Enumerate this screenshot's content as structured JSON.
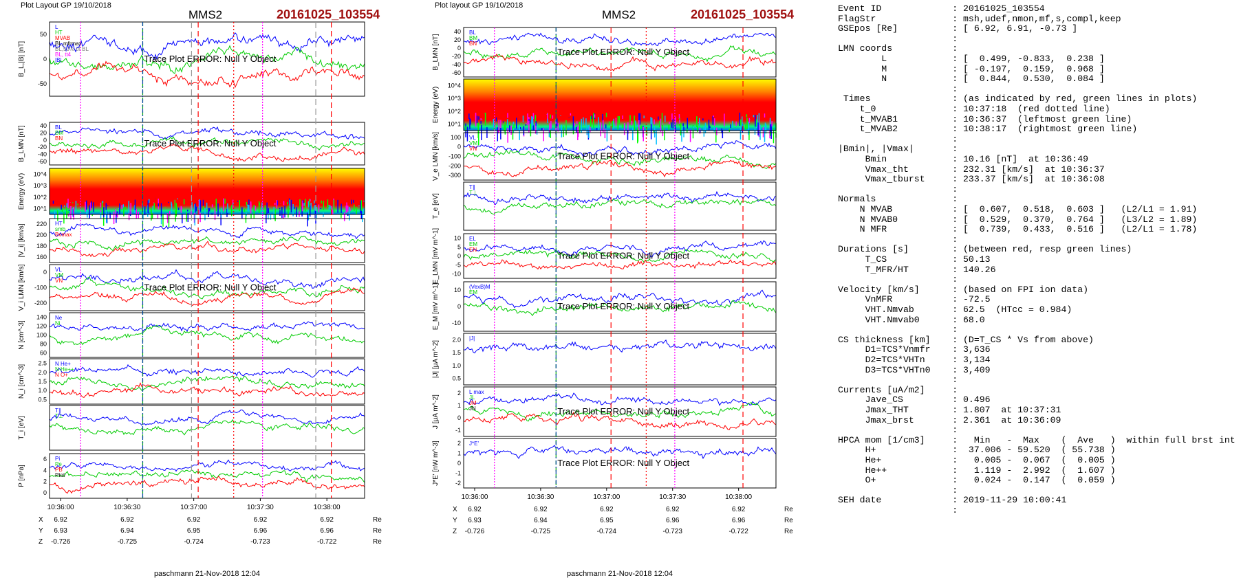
{
  "left_figure": {
    "layout_label": "Plot Layout GP 19/10/2018",
    "spacecraft": "MMS2",
    "event_title": "20161025_103554",
    "footer": "paschmann 21-Nov-2018 12:04",
    "time_ticks": [
      "10:36:00",
      "10:36:30",
      "10:37:00",
      "10:37:30",
      "10:38:00"
    ],
    "gse": {
      "X": {
        "label": "X",
        "values": [
          "6.92",
          "6.92",
          "6.92",
          "6.92",
          "6.92"
        ],
        "unit": "Re"
      },
      "Y": {
        "label": "Y",
        "values": [
          "6.93",
          "6.94",
          "6.95",
          "6.96",
          "6.96"
        ],
        "unit": "Re"
      },
      "Z": {
        "label": "Z",
        "values": [
          "-0.726",
          "-0.725",
          "-0.724",
          "-0.723",
          "-0.722"
        ],
        "unit": "Re"
      }
    },
    "panels": [
      {
        "id": "BL",
        "ylabel": "B_L,|B| [nT]",
        "ticks": [
          "50",
          "0",
          "-50"
        ],
        "legend": [
          "L",
          "HT",
          "MVAB",
          "BL,mfrmax",
          "BL,50% of BL",
          "BL, tt4",
          "|B|"
        ],
        "error": "Trace Plot ERROR: Null Y Object"
      },
      {
        "id": "BLMN",
        "ylabel": "B_LMN [nT]",
        "ticks": [
          "40",
          "20",
          "0",
          "-20",
          "-40",
          "-60"
        ],
        "legend": [
          "BL",
          "BM",
          "BN"
        ],
        "error": "Trace Plot ERROR: Null Y Object"
      },
      {
        "id": "ESPEC",
        "ylabel": "Energy (eV)",
        "ticks": [
          "10^4",
          "10^3",
          "10^2",
          "10^1"
        ]
      },
      {
        "id": "VI",
        "ylabel": "|V_i| [km/s]",
        "ticks": [
          "220",
          "200",
          "180",
          "160"
        ],
        "legend": [
          "HT",
          "smb",
          "Bvmax"
        ]
      },
      {
        "id": "VILMN",
        "ylabel": "V_i LMN [km/s]",
        "ticks": [
          "0",
          "-100",
          "-200"
        ],
        "legend": [
          "VL",
          "VM",
          "VN"
        ],
        "error": "Trace Plot ERROR: Null Y Object"
      },
      {
        "id": "N",
        "ylabel": "N [cm^-3]",
        "ticks": [
          "140",
          "120",
          "100",
          "80",
          "60"
        ],
        "legend": [
          "Ne",
          "Ni"
        ]
      },
      {
        "id": "NI",
        "ylabel": "N_i [cm^-3]",
        "ticks": [
          "2.5",
          "2.0",
          "1.5",
          "1.0",
          "0.5"
        ],
        "legend": [
          "N He+",
          "N He++",
          "N O+"
        ]
      },
      {
        "id": "TI",
        "ylabel": "T_i [eV]",
        "ticks": [],
        "legend": [
          "T∥",
          "T⊥"
        ]
      },
      {
        "id": "P",
        "ylabel": "P [nPa]",
        "ticks": [
          "6",
          "4",
          "2",
          "0"
        ],
        "legend": [
          "Pi",
          "Pe",
          "PB",
          "Ptot"
        ]
      }
    ]
  },
  "middle_figure": {
    "layout_label": "Plot layout GP 19/10/2018",
    "spacecraft": "MMS2",
    "event_title": "20161025_103554",
    "footer": "paschmann 21-Nov-2018 12:04",
    "time_ticks": [
      "10:36:00",
      "10:36:30",
      "10:37:00",
      "10:37:30",
      "10:38:00"
    ],
    "gse": {
      "X": {
        "label": "X",
        "values": [
          "6.92",
          "6.92",
          "6.92",
          "6.92",
          "6.92"
        ],
        "unit": "Re"
      },
      "Y": {
        "label": "Y",
        "values": [
          "6.93",
          "6.94",
          "6.95",
          "6.96",
          "6.96"
        ],
        "unit": "Re"
      },
      "Z": {
        "label": "Z",
        "values": [
          "-0.726",
          "-0.725",
          "-0.724",
          "-0.723",
          "-0.722"
        ],
        "unit": "Re"
      }
    },
    "panels": [
      {
        "id": "BLMN",
        "ylabel": "B_LMN [nT]",
        "ticks": [
          "40",
          "20",
          "0",
          "-20",
          "-40",
          "-60"
        ],
        "legend": [
          "BL",
          "BM",
          "BN"
        ],
        "error": "Trace Plot ERROR: Null Y Object"
      },
      {
        "id": "ESPEC",
        "ylabel": "Energy (eV)",
        "ticks": [
          "10^4",
          "10^3",
          "10^2",
          "10^1"
        ]
      },
      {
        "id": "VE",
        "ylabel": "V_e LMN [km/s]",
        "ticks": [
          "100",
          "0",
          "-100",
          "-200",
          "-300"
        ],
        "legend": [
          "VL",
          "VM",
          "VN"
        ],
        "error": "Trace Plot ERROR: Null Y Object"
      },
      {
        "id": "TE",
        "ylabel": "T_e [eV]",
        "ticks": [],
        "legend": [
          "T∥",
          "T⊥"
        ]
      },
      {
        "id": "ELMN",
        "ylabel": "E_LMN [mV m^-1]",
        "ticks": [
          "10",
          "5",
          "0",
          "-5",
          "-10"
        ],
        "legend": [
          "EL",
          "EM",
          "EN"
        ],
        "error": "Trace Plot ERROR: Null Y Object"
      },
      {
        "id": "EM",
        "ylabel": "E_M [mV m^-1]",
        "ticks": [
          "10",
          "0",
          "-10"
        ],
        "legend": [
          "(VexB)M",
          "EM"
        ],
        "error": "Trace Plot ERROR: Null Y Object"
      },
      {
        "id": "J",
        "ylabel": "|J| [μA m^-2]",
        "ticks": [
          "2.0",
          "1.5",
          "1.0",
          "0.5"
        ],
        "legend": [
          "|J|"
        ]
      },
      {
        "id": "JLMN",
        "ylabel": "J [μA m^-2]",
        "ticks": [
          "2",
          "1",
          "0",
          "-1"
        ],
        "legend": [
          "L max",
          "JL",
          "JM",
          "JN"
        ],
        "error": "Trace Plot ERROR: Null Y Object"
      },
      {
        "id": "JE",
        "ylabel": "J*E' [nW m^-3]",
        "ticks": [
          "2",
          "1",
          "0",
          "-1",
          "-2"
        ],
        "legend": [
          "J*E'"
        ],
        "error": "Trace Plot ERROR: Null Y Object"
      }
    ]
  },
  "chart_data": {
    "type": "line",
    "x_range": [
      "10:35:55",
      "10:38:17"
    ],
    "event_lines": {
      "red_dashed": [
        "10:37:02",
        "10:38:02"
      ],
      "red_dotted": [
        "10:37:18"
      ],
      "green_dashed": [
        "10:36:37"
      ],
      "blue_dashdot": [
        "10:36:37"
      ],
      "magenta_dotted": [
        "10:36:09",
        "10:37:31"
      ],
      "gray_dashed": [
        "10:36:59",
        "10:37:55"
      ]
    },
    "ni_heavy_ions_sample": {
      "name": "N He++",
      "x": [
        "10:35:59",
        "10:36:05",
        "10:36:17",
        "10:36:28",
        "10:36:40",
        "10:36:52",
        "10:37:04",
        "10:37:16",
        "10:37:28",
        "10:37:40",
        "10:37:52",
        "10:38:04"
      ],
      "values": [
        1.1,
        1.7,
        2.6,
        1.4,
        1.8,
        1.2,
        1.8,
        1.2,
        2.2,
        1.3,
        1.7,
        2.0
      ]
    }
  },
  "parameters": {
    "lines": [
      "Event ID             : 20161025_103554",
      "FlagStr              : msh,udef,nmon,mf,s,compl,keep",
      "GSEpos [Re]          : [ 6.92, 6.91, -0.73 ]",
      "                     :",
      "LMN coords           :",
      "        L            : [  0.499, -0.833,  0.238 ]",
      "        M            : [ -0.197,  0.159,  0.968 ]",
      "        N            : [  0.844,  0.530,  0.084 ]",
      "                     :",
      " Times               : (as indicated by red, green lines in plots)",
      "    t_0              : 10:37:18  (red dotted line)",
      "    t_MVAB1          : 10:36:37  (leftmost green line)",
      "    t_MVAB2          : 10:38:17  (rightmost green line)",
      "                     :",
      "|Bmin|, |Vmax|       :",
      "     Bmin            : 10.16 [nT]  at 10:36:49",
      "     Vmax_tht        : 232.31 [km/s]  at 10:36:37",
      "     Vmax_tburst     : 233.37 [km/s]  at 10:36:08",
      "                     :",
      "Normals              :",
      "    N MVAB           : [  0.607,  0.518,  0.603 ]   (L2/L1 = 1.91)",
      "    N MVAB0          : [  0.529,  0.370,  0.764 ]   (L3/L2 = 1.89)",
      "    N MFR            : [  0.739,  0.433,  0.516 ]   (L2/L1 = 1.78)",
      "                     :",
      "Durations [s]        : (between red, resp green lines)",
      "     T_CS            : 50.13",
      "     T_MFR/HT        : 140.26",
      "                     :",
      "Velocity [km/s]      : (based on FPI ion data)",
      "     VnMFR           : -72.5",
      "     VHT.Nmvab       : 62.5  (HTcc = 0.984)",
      "     VHT.Nmvab0      : 68.0",
      "                     :",
      "CS thickness [km]    : (D=T_CS * Vs from above)",
      "     D1=TCS*Vnmfr    : 3,636",
      "     D2=TCS*VHTn     : 3,134",
      "     D3=TCS*VHTn0    : 3,409",
      "                     :",
      "Currents [uA/m2]     :",
      "     Jave_CS         : 0.496",
      "     Jmax_THT        : 1.807  at 10:37:31",
      "     Jmax_brst       : 2.361  at 10:36:09",
      "                     :",
      "HPCA mom [1/cm3]     :   Min   -  Max    (  Ave   )  within full brst int",
      "     H+              :  37.006 - 59.520  ( 55.738 )",
      "     He+             :   0.005 -  0.067  (  0.005 )",
      "     He++            :   1.119 -  2.992  (  1.607 )",
      "     O+              :   0.024 -  0.147  (  0.059 )",
      "                     :",
      "SEH date             : 2019-11-29 10:00:41",
      "                     :"
    ]
  }
}
